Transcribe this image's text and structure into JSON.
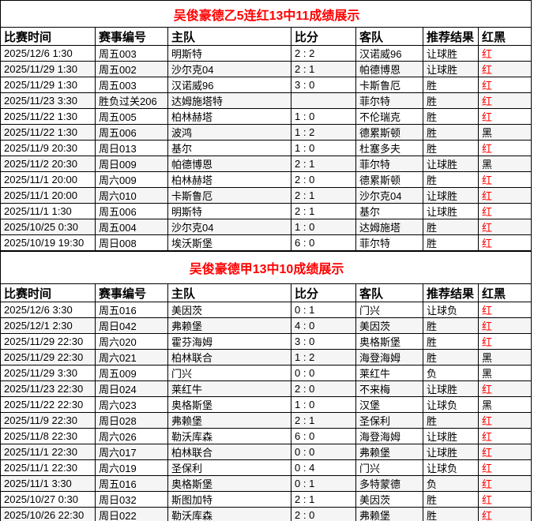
{
  "page": {
    "background": "#ffffff",
    "border_color": "#000000",
    "title_color": "#ff0000",
    "red_result_color": "#ff0000",
    "black_result_color": "#000000",
    "alt_row_color": "#f5f5f5"
  },
  "columns": [
    {
      "key": "time",
      "label": "比赛时间"
    },
    {
      "key": "match_no",
      "label": "赛事编号"
    },
    {
      "key": "home",
      "label": "主队"
    },
    {
      "key": "score",
      "label": "比分"
    },
    {
      "key": "away",
      "label": "客队"
    },
    {
      "key": "tip",
      "label": "推荐结果"
    },
    {
      "key": "result",
      "label": "红黑"
    }
  ],
  "tables": [
    {
      "title": "吴俊豪德乙5连红13中11成绩展示",
      "rows": [
        {
          "time": "2025/12/6 1:30",
          "match_no": "周五003",
          "home": "明斯特",
          "score": "2 : 2",
          "away": "汉诺威96",
          "tip": "让球胜",
          "result": "红"
        },
        {
          "time": "2025/11/29 1:30",
          "match_no": "周五002",
          "home": "沙尔克04",
          "score": "2 : 1",
          "away": "帕德博恩",
          "tip": "让球胜",
          "result": "红"
        },
        {
          "time": "2025/11/29 1:30",
          "match_no": "周五003",
          "home": "汉诺威96",
          "score": "3 : 0",
          "away": "卡斯鲁厄",
          "tip": "胜",
          "result": "红"
        },
        {
          "time": "2025/11/23 3:30",
          "match_no": "胜负过关206",
          "home": "达姆施塔特",
          "score": "",
          "away": "菲尔特",
          "tip": "胜",
          "result": "红"
        },
        {
          "time": "2025/11/22 1:30",
          "match_no": "周五005",
          "home": "柏林赫塔",
          "score": "1 : 0",
          "away": "不伦瑞克",
          "tip": "胜",
          "result": "红"
        },
        {
          "time": "2025/11/22 1:30",
          "match_no": "周五006",
          "home": "波鸿",
          "score": "1 : 2",
          "away": "德累斯顿",
          "tip": "胜",
          "result": "黑"
        },
        {
          "time": "2025/11/9 20:30",
          "match_no": "周日013",
          "home": "基尔",
          "score": "1 : 0",
          "away": "杜塞多夫",
          "tip": "胜",
          "result": "红"
        },
        {
          "time": "2025/11/2 20:30",
          "match_no": "周日009",
          "home": "帕德博恩",
          "score": "2 : 1",
          "away": "菲尔特",
          "tip": "让球胜",
          "result": "黑"
        },
        {
          "time": "2025/11/1 20:00",
          "match_no": "周六009",
          "home": "柏林赫塔",
          "score": "2 : 0",
          "away": "德累斯顿",
          "tip": "胜",
          "result": "红"
        },
        {
          "time": "2025/11/1 20:00",
          "match_no": "周六010",
          "home": "卡斯鲁厄",
          "score": "2 : 1",
          "away": "沙尔克04",
          "tip": "让球胜",
          "result": "红"
        },
        {
          "time": "2025/11/1 1:30",
          "match_no": "周五006",
          "home": "明斯特",
          "score": "2 : 1",
          "away": "基尔",
          "tip": "让球胜",
          "result": "红"
        },
        {
          "time": "2025/10/25 0:30",
          "match_no": "周五004",
          "home": "沙尔克04",
          "score": "1 : 0",
          "away": "达姆施塔",
          "tip": "胜",
          "result": "红"
        },
        {
          "time": "2025/10/19 19:30",
          "match_no": "周日008",
          "home": "埃沃斯堡",
          "score": "6 : 0",
          "away": "菲尔特",
          "tip": "胜",
          "result": "红"
        }
      ]
    },
    {
      "title": "吴俊豪德甲13中10成绩展示",
      "rows": [
        {
          "time": "2025/12/6 3:30",
          "match_no": "周五016",
          "home": "美因茨",
          "score": "0 : 1",
          "away": "门兴",
          "tip": "让球负",
          "result": "红"
        },
        {
          "time": "2025/12/1 2:30",
          "match_no": "周日042",
          "home": "弗赖堡",
          "score": "4 : 0",
          "away": "美因茨",
          "tip": "胜",
          "result": "红"
        },
        {
          "time": "2025/11/29 22:30",
          "match_no": "周六020",
          "home": "霍芬海姆",
          "score": "3 : 0",
          "away": "奥格斯堡",
          "tip": "胜",
          "result": "红"
        },
        {
          "time": "2025/11/29 22:30",
          "match_no": "周六021",
          "home": "柏林联合",
          "score": "1 : 2",
          "away": "海登海姆",
          "tip": "胜",
          "result": "黑"
        },
        {
          "time": "2025/11/29 3:30",
          "match_no": "周五009",
          "home": "门兴",
          "score": "0 : 0",
          "away": "莱红牛",
          "tip": "负",
          "result": "黑"
        },
        {
          "time": "2025/11/23 22:30",
          "match_no": "周日024",
          "home": "莱红牛",
          "score": "2 : 0",
          "away": "不来梅",
          "tip": "让球胜",
          "result": "红"
        },
        {
          "time": "2025/11/22 22:30",
          "match_no": "周六023",
          "home": "奥格斯堡",
          "score": "1 : 0",
          "away": "汉堡",
          "tip": "让球负",
          "result": "黑"
        },
        {
          "time": "2025/11/9 22:30",
          "match_no": "周日028",
          "home": "弗赖堡",
          "score": "2 : 1",
          "away": "圣保利",
          "tip": "胜",
          "result": "红"
        },
        {
          "time": "2025/11/8 22:30",
          "match_no": "周六026",
          "home": "勒沃库森",
          "score": "6 : 0",
          "away": "海登海姆",
          "tip": "让球胜",
          "result": "红"
        },
        {
          "time": "2025/11/1 22:30",
          "match_no": "周六017",
          "home": "柏林联合",
          "score": "0 : 0",
          "away": "弗赖堡",
          "tip": "让球胜",
          "result": "红"
        },
        {
          "time": "2025/11/1 22:30",
          "match_no": "周六019",
          "home": "圣保利",
          "score": "0 : 4",
          "away": "门兴",
          "tip": "让球负",
          "result": "红"
        },
        {
          "time": "2025/11/1 3:30",
          "match_no": "周五016",
          "home": "奥格斯堡",
          "score": "0 : 1",
          "away": "多特蒙德",
          "tip": "负",
          "result": "红"
        },
        {
          "time": "2025/10/27 0:30",
          "match_no": "周日032",
          "home": "斯图加特",
          "score": "2 : 1",
          "away": "美因茨",
          "tip": "胜",
          "result": "红"
        },
        {
          "time": "2025/10/26 22:30",
          "match_no": "周日022",
          "home": "勒沃库森",
          "score": "2 : 0",
          "away": "弗赖堡",
          "tip": "胜",
          "result": "红"
        }
      ]
    }
  ]
}
